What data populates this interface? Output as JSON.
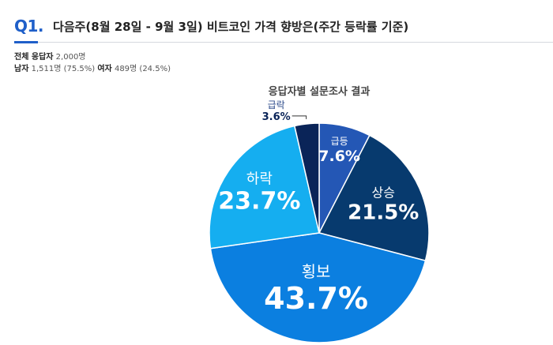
{
  "header": {
    "qnum": "Q1.",
    "title": "다음주(8월 28일 - 9월 3일)  비트코인 가격 향방은(주간 등락률 기준)"
  },
  "respondents": {
    "total_label": "전체 응답자",
    "total_value": "2,000명",
    "male_label": "남자",
    "male_value": "1,511명 (75.5%)",
    "female_label": "여자",
    "female_value": "489명 (24.5%)"
  },
  "chart_data": {
    "type": "pie",
    "title": "응답자별 설문조사 결과",
    "start": "12 o'clock, clockwise",
    "slices": [
      {
        "label": "급등",
        "value": 7.6,
        "display": "7.6%",
        "color": "#2457b5"
      },
      {
        "label": "상승",
        "value": 21.5,
        "display": "21.5%",
        "color": "#073a6e"
      },
      {
        "label": "횡보",
        "value": 43.7,
        "display": "43.7%",
        "color": "#0b7fe0"
      },
      {
        "label": "하락",
        "value": 23.7,
        "display": "23.7%",
        "color": "#15aef0"
      },
      {
        "label": "급락",
        "value": 3.6,
        "display": "3.6%",
        "color": "#0a2458"
      }
    ]
  }
}
